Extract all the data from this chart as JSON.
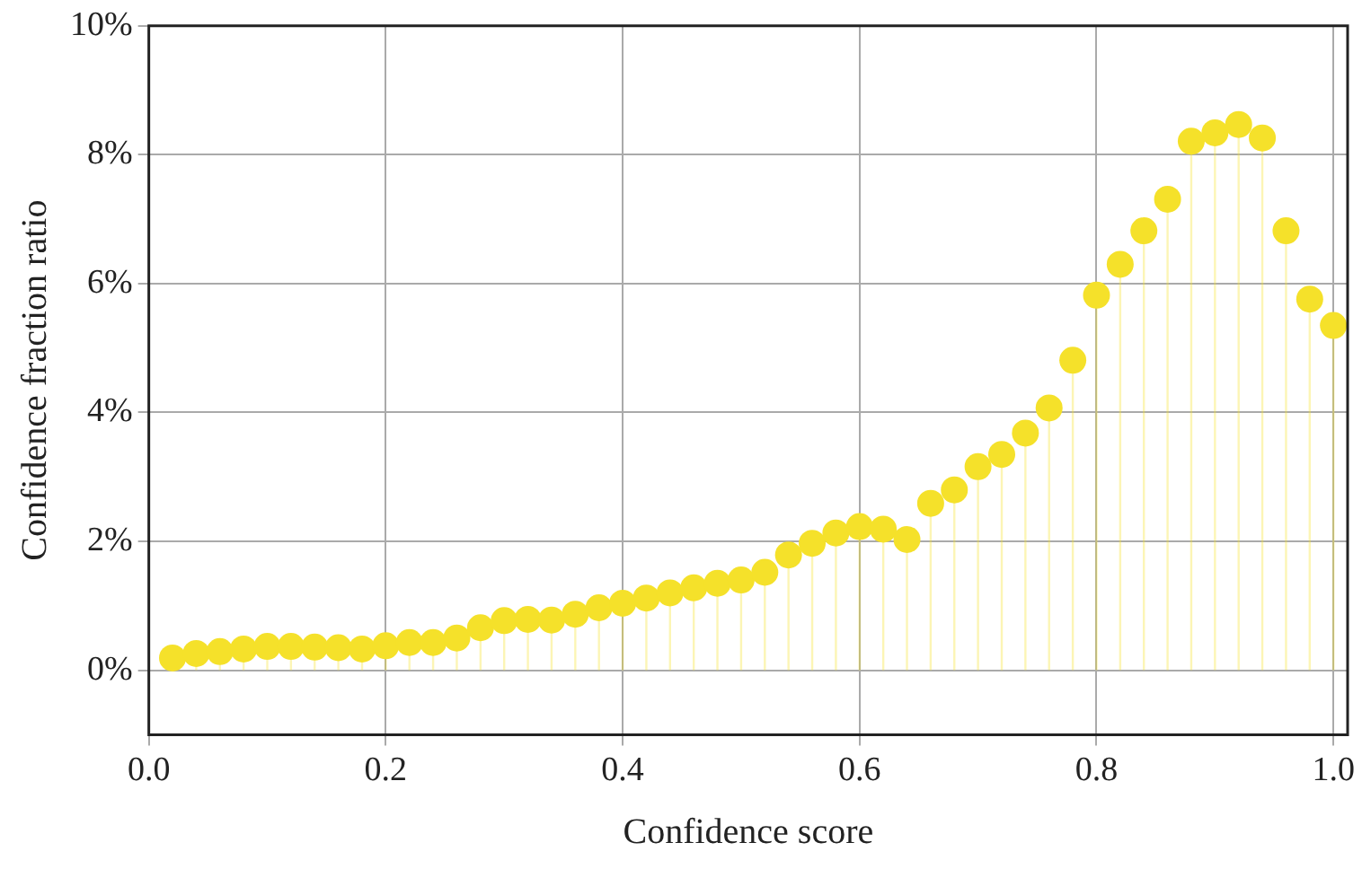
{
  "chart_data": {
    "type": "lollipop",
    "xlabel": "Confidence score",
    "ylabel": "Confidence fraction ratio",
    "x": [
      0.02,
      0.04,
      0.06,
      0.08,
      0.1,
      0.12,
      0.14,
      0.16,
      0.18,
      0.2,
      0.22,
      0.24,
      0.26,
      0.28,
      0.3,
      0.32,
      0.34,
      0.36,
      0.38,
      0.4,
      0.42,
      0.44,
      0.46,
      0.48,
      0.5,
      0.52,
      0.54,
      0.56,
      0.58,
      0.6,
      0.62,
      0.64,
      0.66,
      0.68,
      0.7,
      0.72,
      0.74,
      0.76,
      0.78,
      0.8,
      0.82,
      0.84,
      0.86,
      0.88,
      0.9,
      0.92,
      0.94,
      0.96,
      0.98,
      1.0
    ],
    "series": [
      {
        "color": "#f5e12a",
        "values": [
          0.19,
          0.26,
          0.29,
          0.33,
          0.37,
          0.37,
          0.36,
          0.35,
          0.33,
          0.38,
          0.43,
          0.43,
          0.5,
          0.66,
          0.77,
          0.79,
          0.78,
          0.87,
          0.97,
          1.04,
          1.12,
          1.2,
          1.28,
          1.35,
          1.4,
          1.52,
          1.79,
          1.97,
          2.13,
          2.23,
          2.19,
          2.03,
          2.59,
          2.8,
          3.16,
          3.35,
          3.68,
          4.07,
          4.81,
          5.82,
          6.3,
          6.82,
          7.31,
          8.21,
          8.34,
          8.47,
          8.26,
          6.82,
          5.76,
          5.35
        ]
      }
    ],
    "xlim": [
      0,
      1.012
    ],
    "ylim": [
      -1,
      10
    ],
    "xticks": [
      {
        "value": 0,
        "label": "0.0"
      },
      {
        "value": 0.2,
        "label": "0.2"
      },
      {
        "value": 0.4,
        "label": "0.4"
      },
      {
        "value": 0.6,
        "label": "0.6"
      },
      {
        "value": 0.8,
        "label": "0.8"
      },
      {
        "value": 1,
        "label": "1.0"
      }
    ],
    "yticks": [
      {
        "value": 0,
        "label": "0%"
      },
      {
        "value": 2,
        "label": "2%"
      },
      {
        "value": 4,
        "label": "4%"
      },
      {
        "value": 6,
        "label": "6%"
      },
      {
        "value": 8,
        "label": "8%"
      },
      {
        "value": 10,
        "label": "10%"
      }
    ],
    "grid": true,
    "marker": "circle"
  }
}
